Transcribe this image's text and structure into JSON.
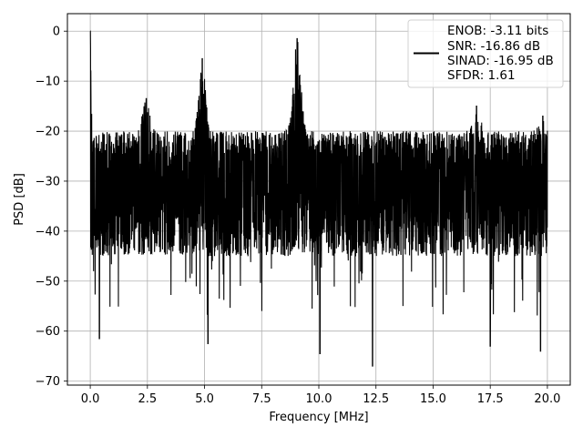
{
  "chart_data": {
    "type": "line",
    "title": "",
    "xlabel": "Frequency [MHz]",
    "ylabel": "PSD [dB]",
    "xlim": [
      -1.0,
      21.0
    ],
    "ylim": [
      -70.8,
      3.5
    ],
    "xticks": [
      0.0,
      2.5,
      5.0,
      7.5,
      10.0,
      12.5,
      15.0,
      17.5,
      20.0
    ],
    "xtick_labels": [
      "0.0",
      "2.5",
      "5.0",
      "7.5",
      "10.0",
      "12.5",
      "15.0",
      "17.5",
      "20.0"
    ],
    "yticks": [
      0,
      -10,
      -20,
      -30,
      -40,
      -50,
      -60,
      -70
    ],
    "ytick_labels": [
      "0",
      "−10",
      "−20",
      "−30",
      "−40",
      "−50",
      "−60",
      "−70"
    ],
    "grid": true,
    "legend_position": "top-right",
    "line_color": "#000000",
    "series": [
      {
        "name": "",
        "description": "dense noisy PSD trace spanning 0-20 MHz",
        "x_range": [
          0.0,
          20.0
        ],
        "noise_floor_db": -31,
        "envelope_upper_db": -20,
        "envelope_lower_db": -45,
        "peaks": [
          {
            "x": 0.0,
            "y": 0.0
          },
          {
            "x": 2.45,
            "y": -13.5
          },
          {
            "x": 4.9,
            "y": -5.5
          },
          {
            "x": 9.05,
            "y": -1.5
          },
          {
            "x": 16.9,
            "y": -15.0
          },
          {
            "x": 19.8,
            "y": -17.0
          }
        ],
        "minima": [
          {
            "x": 0.4,
            "y": -61.5
          },
          {
            "x": 5.15,
            "y": -62.5
          },
          {
            "x": 10.05,
            "y": -64.5
          },
          {
            "x": 12.35,
            "y": -67.0
          },
          {
            "x": 17.5,
            "y": -63.0
          },
          {
            "x": 19.7,
            "y": -64.0
          }
        ]
      }
    ],
    "legend_lines": [
      "ENOB: -3.11 bits",
      "SNR: -16.86 dB",
      "SINAD: -16.95 dB",
      "SFDR: 1.61"
    ]
  }
}
